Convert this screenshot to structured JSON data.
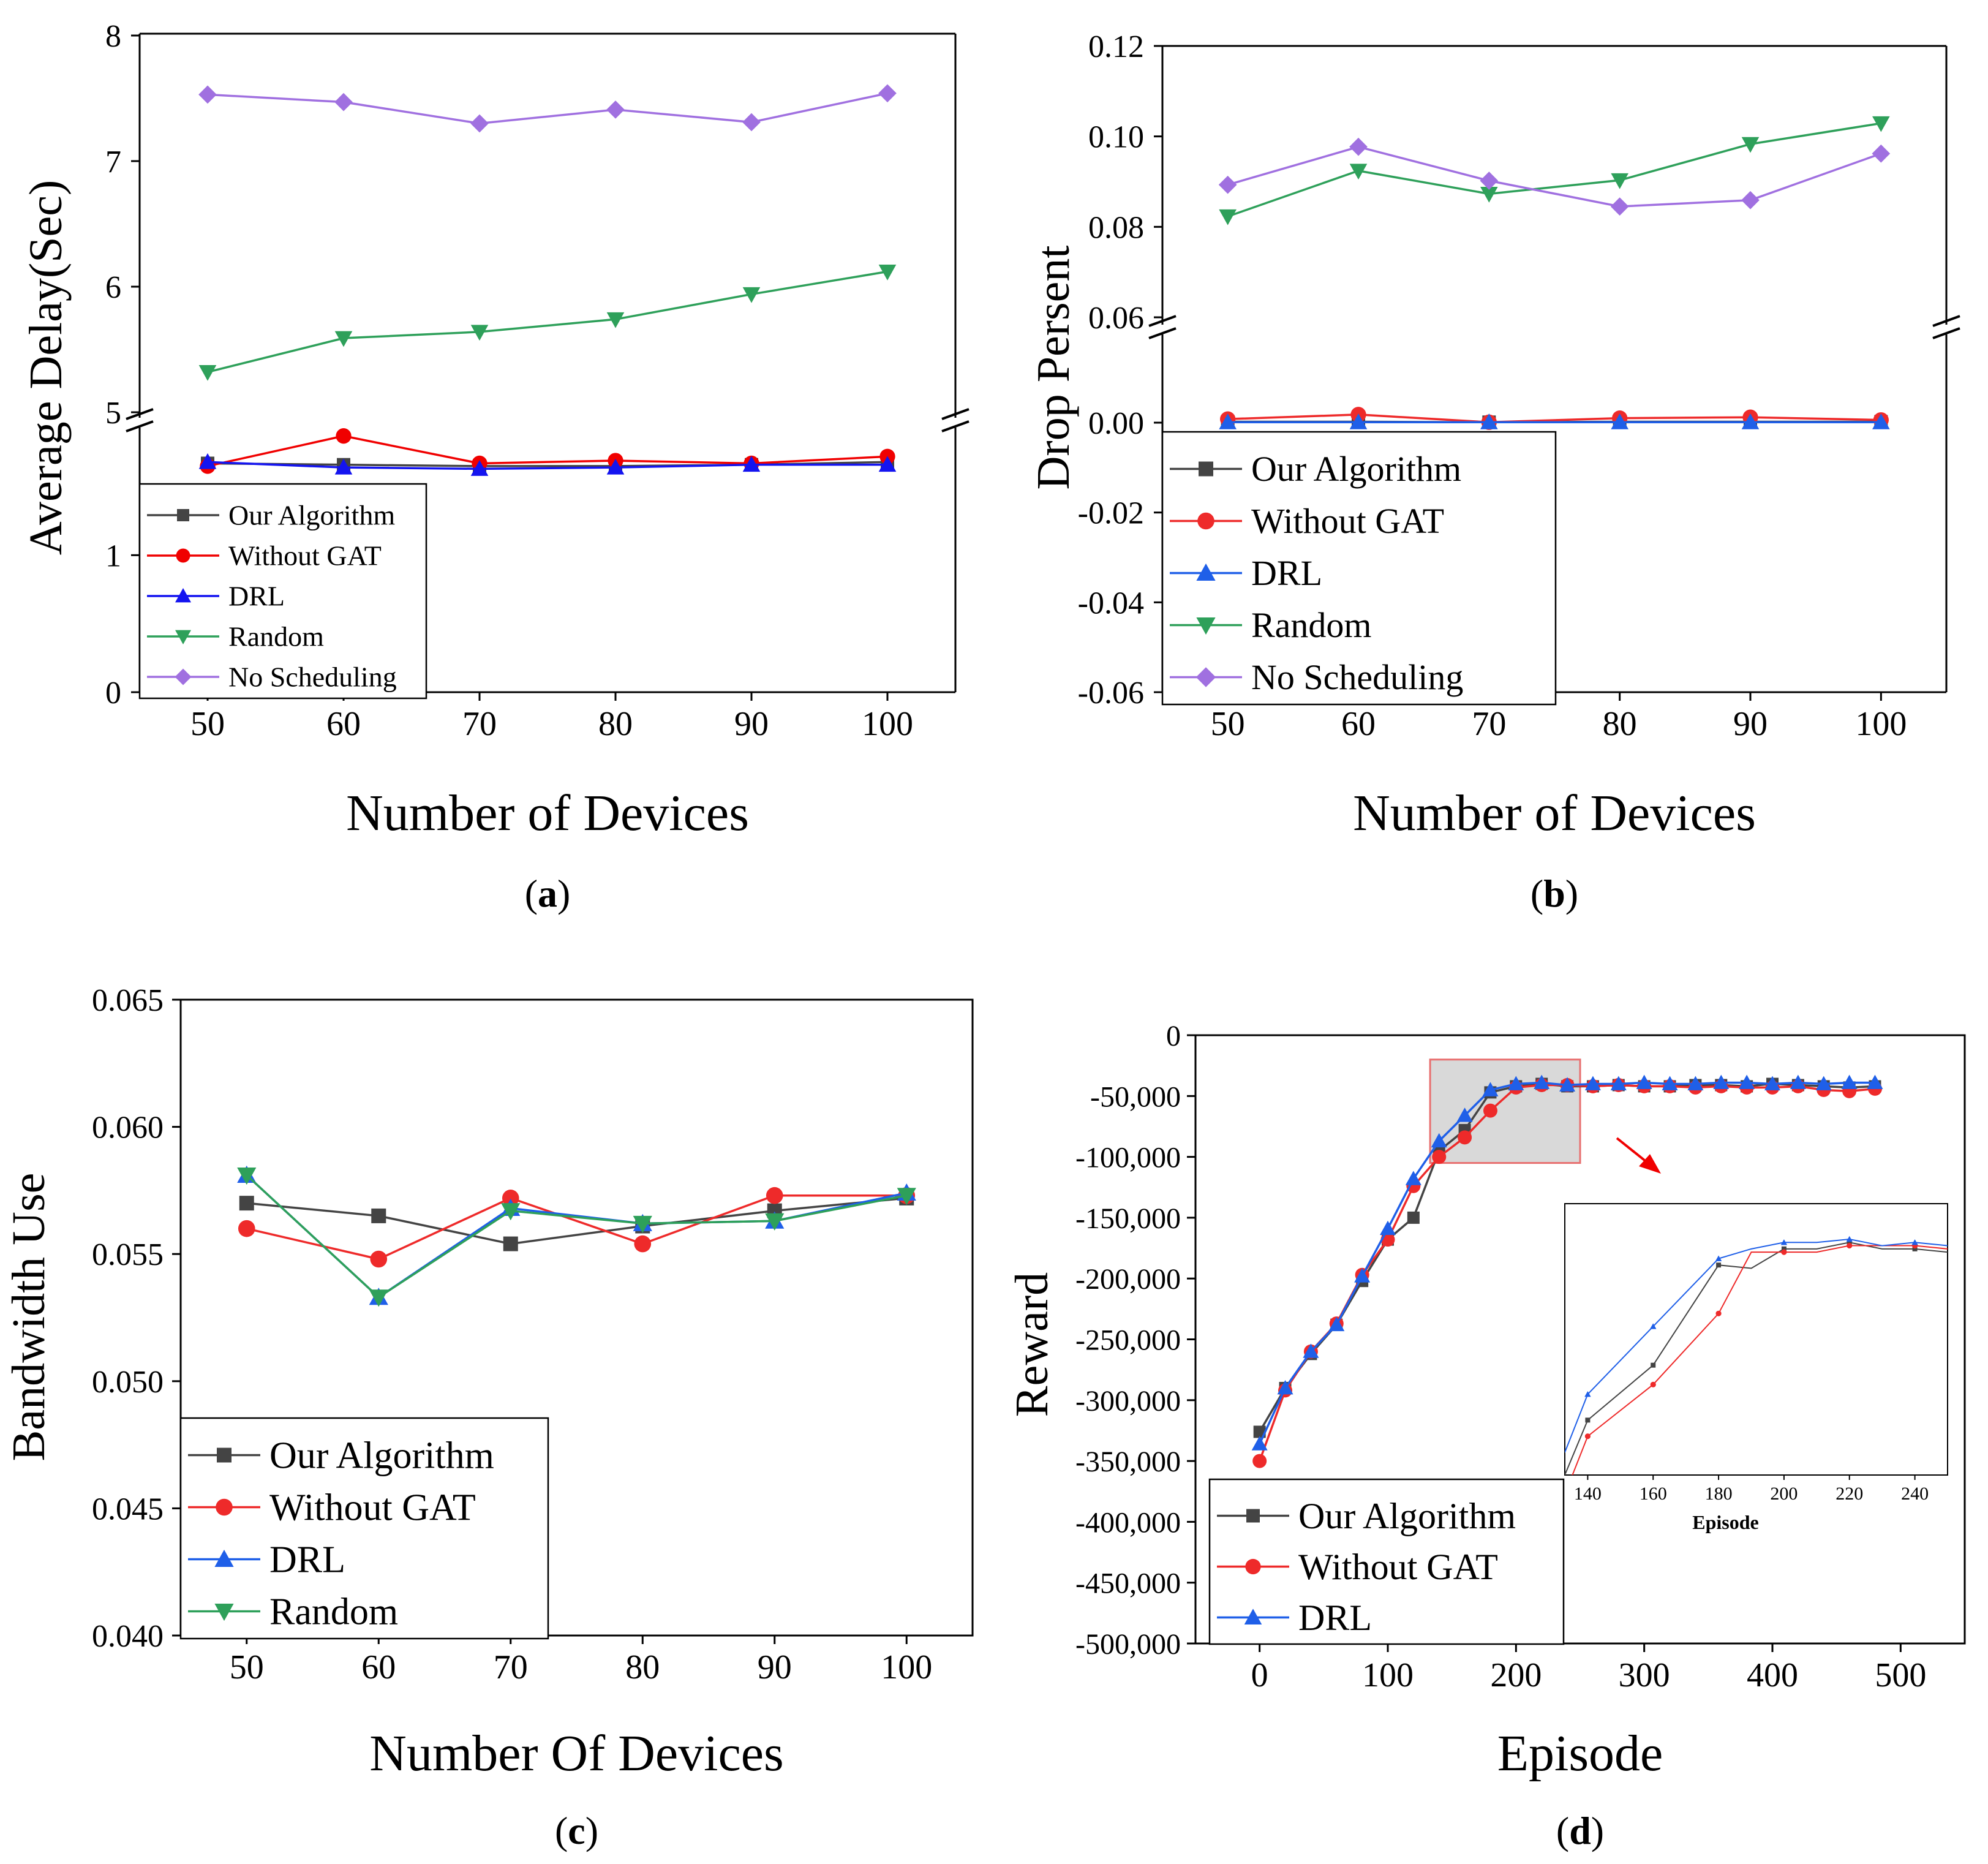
{
  "colors": {
    "black": "#444444",
    "red": "#ee2a2a",
    "blue": "#1f5fe8",
    "green": "#2ea05a",
    "purple": "#a070e0",
    "red_pure": "#f00000",
    "blue_pure": "#1414f0"
  },
  "chart_data": [
    {
      "id": "a",
      "type": "line",
      "caption_label": "a",
      "xlabel": "Number of Devices",
      "ylabel": "Average Delay(Sec)",
      "x": [
        50,
        60,
        70,
        80,
        90,
        100
      ],
      "xticks": [
        "50",
        "60",
        "70",
        "80",
        "90",
        "100"
      ],
      "xlim": [
        45,
        105
      ],
      "y_axis_break": {
        "lower_range": [
          0,
          1.9
        ],
        "upper_range": [
          5,
          8
        ]
      },
      "yticks_lower": [
        "0",
        "1"
      ],
      "yticks_upper": [
        "5",
        "6",
        "7",
        "8"
      ],
      "series": [
        {
          "name": "Our Algorithm",
          "marker": "square",
          "values": [
            1.67,
            1.66,
            1.65,
            1.65,
            1.66,
            1.68
          ]
        },
        {
          "name": "Without GAT",
          "marker": "circle",
          "values": [
            1.65,
            1.87,
            1.67,
            1.69,
            1.67,
            1.72
          ]
        },
        {
          "name": "DRL",
          "marker": "triangle-up",
          "values": [
            1.68,
            1.64,
            1.63,
            1.64,
            1.66,
            1.66
          ]
        },
        {
          "name": "Random",
          "marker": "triangle-down",
          "values": [
            5.32,
            5.59,
            5.64,
            5.74,
            5.94,
            6.12
          ]
        },
        {
          "name": "No Scheduling",
          "marker": "diamond",
          "values": [
            7.53,
            7.47,
            7.3,
            7.41,
            7.31,
            7.54
          ]
        }
      ],
      "legend": "bottom-left"
    },
    {
      "id": "b",
      "type": "line",
      "caption_label": "b",
      "xlabel": "Number of Devices",
      "ylabel": "Drop Persent",
      "x": [
        50,
        60,
        70,
        80,
        90,
        100
      ],
      "xticks": [
        "50",
        "60",
        "70",
        "80",
        "90",
        "100"
      ],
      "xlim": [
        45,
        105
      ],
      "y_axis_break": {
        "lower_range": [
          -0.06,
          0.005
        ],
        "upper_range": [
          0.06,
          0.12
        ]
      },
      "yticks_lower": [
        "-0.06",
        "-0.04",
        "-0.02",
        "0.00"
      ],
      "yticks_upper": [
        "0.06",
        "0.08",
        "0.10",
        "0.12"
      ],
      "series": [
        {
          "name": "Our Algorithm",
          "marker": "square",
          "values": [
            0.0002,
            0.0002,
            0.0001,
            0.0002,
            0.0002,
            0.0002
          ]
        },
        {
          "name": "Without GAT",
          "marker": "circle",
          "values": [
            0.0008,
            0.0018,
            0.0001,
            0.001,
            0.0012,
            0.0006
          ]
        },
        {
          "name": "DRL",
          "marker": "triangle-up",
          "values": [
            0.0001,
            0.0001,
            0.0001,
            0.0001,
            0.0001,
            0.0001
          ]
        },
        {
          "name": "Random",
          "marker": "triangle-down",
          "values": [
            0.0823,
            0.0924,
            0.0873,
            0.0903,
            0.0983,
            0.1029
          ]
        },
        {
          "name": "No Scheduling",
          "marker": "diamond",
          "values": [
            0.0893,
            0.0977,
            0.0902,
            0.0845,
            0.0859,
            0.0962
          ]
        }
      ],
      "legend": "bottom-left"
    },
    {
      "id": "c",
      "type": "line",
      "caption_label": "c",
      "xlabel": "Number Of Devices",
      "ylabel": "Bandwidth Use",
      "x": [
        50,
        60,
        70,
        80,
        90,
        100
      ],
      "xticks": [
        "50",
        "60",
        "70",
        "80",
        "90",
        "100"
      ],
      "xlim": [
        45,
        105
      ],
      "ylim": [
        0.04,
        0.065
      ],
      "yticks": [
        "0.040",
        "0.045",
        "0.050",
        "0.055",
        "0.060",
        "0.065"
      ],
      "series": [
        {
          "name": "Our Algorithm",
          "marker": "square",
          "values": [
            0.057,
            0.0565,
            0.0554,
            0.0561,
            0.0567,
            0.0572
          ]
        },
        {
          "name": "Without GAT",
          "marker": "circle",
          "values": [
            0.056,
            0.0548,
            0.0572,
            0.0554,
            0.0573,
            0.0573
          ]
        },
        {
          "name": "DRL",
          "marker": "triangle-up",
          "values": [
            0.0581,
            0.0533,
            0.0568,
            0.0562,
            0.0563,
            0.0574
          ]
        },
        {
          "name": "Random",
          "marker": "triangle-down",
          "values": [
            0.0581,
            0.0533,
            0.0567,
            0.0562,
            0.0563,
            0.0573
          ]
        }
      ],
      "legend": "bottom-left"
    },
    {
      "id": "d",
      "type": "line",
      "caption_label": "d",
      "xlabel": "Episode",
      "ylabel": "Reward",
      "xlim": [
        -50,
        550
      ],
      "xticks": [
        "0",
        "100",
        "200",
        "300",
        "400",
        "500"
      ],
      "ylim": [
        -500000,
        0
      ],
      "yticks": [
        "0",
        "-50,000",
        "-100,000",
        "-150,000",
        "-200,000",
        "-250,000",
        "-300,000",
        "-350,000",
        "-400,000",
        "-450,000",
        "-500,000"
      ],
      "x": [
        0,
        20,
        40,
        60,
        80,
        100,
        120,
        140,
        160,
        180,
        200,
        220,
        240,
        260,
        280,
        300,
        320,
        340,
        360,
        380,
        400,
        420,
        440,
        460,
        480
      ],
      "series": [
        {
          "name": "Our Algorithm",
          "marker": "square",
          "values": [
            -326000,
            -290000,
            -262000,
            -238000,
            -202000,
            -168000,
            -150000,
            -95000,
            -78000,
            -47000,
            -42000,
            -40000,
            -42000,
            -42000,
            -41000,
            -42000,
            -42000,
            -41000,
            -41000,
            -42000,
            -40000,
            -41000,
            -42000,
            -43000,
            -42000
          ]
        },
        {
          "name": "Without GAT",
          "marker": "circle",
          "values": [
            -350000,
            -292000,
            -260000,
            -237000,
            -197000,
            -168000,
            -124000,
            -100000,
            -84000,
            -62000,
            -43000,
            -41000,
            -41000,
            -42000,
            -41000,
            -42000,
            -42000,
            -43000,
            -42000,
            -43000,
            -43000,
            -42000,
            -45000,
            -46000,
            -44000
          ]
        },
        {
          "name": "DRL",
          "marker": "triangle-up",
          "values": [
            -336000,
            -290000,
            -260000,
            -238000,
            -198000,
            -159000,
            -118000,
            -87000,
            -66000,
            -45000,
            -40000,
            -39000,
            -41000,
            -40000,
            -40000,
            -39000,
            -40000,
            -40000,
            -39000,
            -39000,
            -40000,
            -39000,
            -40000,
            -39000,
            -39000
          ]
        }
      ],
      "inset": {
        "xlabel": "Episode",
        "xlim": [
          133,
          250
        ],
        "xticks": [
          "140",
          "160",
          "180",
          "200",
          "220",
          "240"
        ],
        "ylim": [
          -112000,
          -28000
        ],
        "x": [
          140,
          160,
          180,
          190,
          200,
          210,
          220,
          230,
          240,
          250
        ],
        "series": [
          {
            "name": "Our Algorithm",
            "values": [
              -95000,
              -78000,
              -47000,
              -48000,
              -42000,
              -42000,
              -40000,
              -42000,
              -42000,
              -43000
            ]
          },
          {
            "name": "Without GAT",
            "values": [
              -100000,
              -84000,
              -62000,
              -43000,
              -43000,
              -43000,
              -41000,
              -41000,
              -41000,
              -42000
            ]
          },
          {
            "name": "DRL",
            "values": [
              -87000,
              -66000,
              -45000,
              -42000,
              -40000,
              -40000,
              -39000,
              -41000,
              -40000,
              -41000
            ]
          }
        ]
      },
      "legend": "bottom-left"
    }
  ]
}
